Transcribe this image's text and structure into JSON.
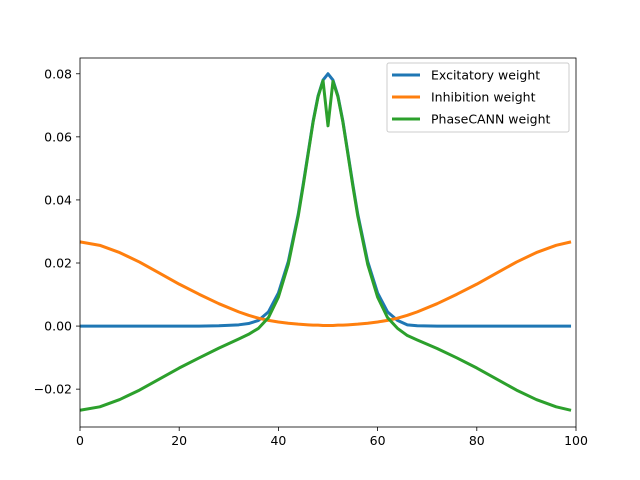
{
  "chart_data": {
    "type": "line",
    "title": "",
    "xlabel": "",
    "ylabel": "",
    "xlim": [
      0,
      100
    ],
    "ylim": [
      -0.032,
      0.085
    ],
    "grid": false,
    "legend_position": "top-right",
    "x_ticks": [
      0,
      20,
      40,
      60,
      80,
      100
    ],
    "x_tick_labels": [
      "0",
      "20",
      "40",
      "60",
      "80",
      "100"
    ],
    "y_ticks": [
      -0.02,
      0.0,
      0.02,
      0.04,
      0.06,
      0.08
    ],
    "y_tick_labels": [
      "−0.02",
      "0.00",
      "0.02",
      "0.04",
      "0.06",
      "0.08"
    ],
    "x": [
      0,
      4,
      8,
      12,
      16,
      20,
      24,
      28,
      32,
      34,
      36,
      38,
      40,
      42,
      44,
      45,
      46,
      47,
      48,
      49,
      50,
      51,
      52,
      53,
      54,
      55,
      56,
      58,
      60,
      62,
      64,
      66,
      68,
      72,
      76,
      80,
      84,
      88,
      92,
      96,
      99
    ],
    "series": [
      {
        "name": "Excitatory weight",
        "color": "#1f77b4",
        "values": [
          0.0,
          0.0,
          0.0,
          0.0,
          0.0,
          0.0,
          0.0,
          0.0001,
          0.0004,
          0.0008,
          0.0018,
          0.0045,
          0.0105,
          0.0205,
          0.0355,
          0.045,
          0.055,
          0.065,
          0.073,
          0.078,
          0.08,
          0.078,
          0.073,
          0.065,
          0.055,
          0.045,
          0.0355,
          0.0205,
          0.0105,
          0.0045,
          0.0018,
          0.0004,
          0.0001,
          0.0,
          0.0,
          0.0,
          0.0,
          0.0,
          0.0,
          0.0,
          0.0
        ]
      },
      {
        "name": "Inhibition weight",
        "color": "#ff7f0e",
        "values": [
          0.0267,
          0.0256,
          0.0233,
          0.0203,
          0.0168,
          0.0133,
          0.0101,
          0.0071,
          0.0045,
          0.0034,
          0.0025,
          0.0018,
          0.0013,
          0.0009,
          0.0006,
          0.0005,
          0.0004,
          0.0003,
          0.0003,
          0.0002,
          0.0002,
          0.0002,
          0.0003,
          0.0003,
          0.0004,
          0.0005,
          0.0006,
          0.0009,
          0.0013,
          0.0018,
          0.0025,
          0.0034,
          0.0045,
          0.0071,
          0.0101,
          0.0133,
          0.0168,
          0.0203,
          0.0233,
          0.0256,
          0.0267
        ]
      },
      {
        "name": "PhaseCANN weight",
        "color": "#2ca02c",
        "values": [
          -0.0267,
          -0.0256,
          -0.0233,
          -0.0203,
          -0.0168,
          -0.0133,
          -0.0101,
          -0.007,
          -0.0041,
          -0.0026,
          -0.0007,
          0.0027,
          0.0092,
          0.0196,
          0.0349,
          0.0445,
          0.0546,
          0.0647,
          0.0727,
          0.0778,
          0.0635,
          0.0776,
          0.0727,
          0.0647,
          0.0546,
          0.0445,
          0.0349,
          0.0196,
          0.0092,
          0.0027,
          -0.0007,
          -0.003,
          -0.0044,
          -0.0071,
          -0.0101,
          -0.0133,
          -0.0168,
          -0.0203,
          -0.0233,
          -0.0256,
          -0.0267
        ]
      }
    ]
  }
}
